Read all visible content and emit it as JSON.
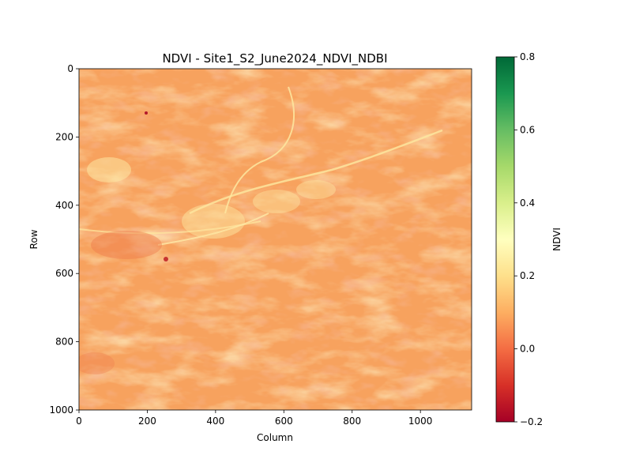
{
  "chart_data": {
    "type": "heatmap",
    "title": "NDVI - Site1_S2_June2024_NDVI_NDBI",
    "xlabel": "Column",
    "ylabel": "Row",
    "xlim": [
      0,
      1150
    ],
    "ylim": [
      1000,
      0
    ],
    "xticks": [
      0,
      200,
      400,
      600,
      800,
      1000
    ],
    "yticks": [
      0,
      200,
      400,
      600,
      800,
      1000
    ],
    "colorbar": {
      "label": "NDVI",
      "range": [
        -0.2,
        0.8
      ],
      "ticks": [
        "0.8",
        "0.6",
        "0.4",
        "0.2",
        "0.0",
        "−0.2"
      ],
      "colormap": "RdYlGn",
      "stops": [
        "#a50026",
        "#d73027",
        "#f46d43",
        "#fdae61",
        "#fee08b",
        "#ffffbf",
        "#d9ef8b",
        "#a6d96a",
        "#66bd63",
        "#1a9850",
        "#006837"
      ]
    },
    "dominant_value_range": [
      0.05,
      0.25
    ],
    "grid": false
  }
}
